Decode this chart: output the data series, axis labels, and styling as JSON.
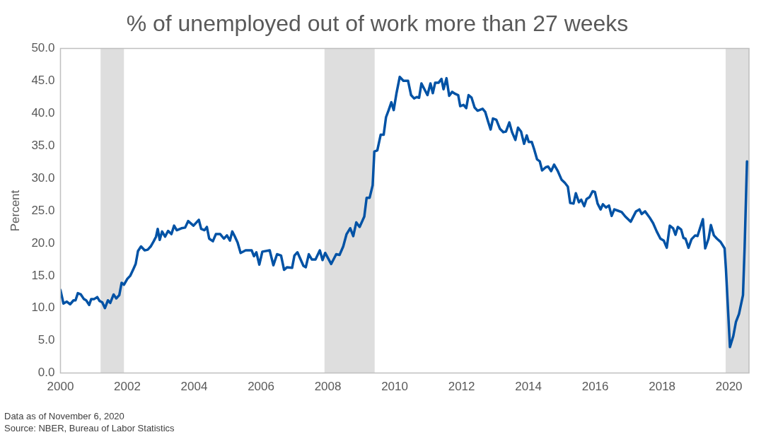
{
  "chart_data": {
    "type": "line",
    "title": "% of unemployed out of work more than 27 weeks",
    "ylabel": "Percent",
    "annotations": [
      "Data as of November 6, 2020",
      "Source: NBER, Bureau of Labor Statistics"
    ],
    "x": [
      2000.0,
      2000.09,
      2000.19,
      2000.29,
      2000.39,
      2000.45,
      2000.52,
      2000.61,
      2000.7,
      2000.77,
      2000.86,
      2000.92,
      2001.01,
      2001.1,
      2001.17,
      2001.25,
      2001.33,
      2001.42,
      2001.49,
      2001.59,
      2001.67,
      2001.76,
      2001.83,
      2001.9,
      2002.0,
      2002.09,
      2002.18,
      2002.25,
      2002.32,
      2002.41,
      2002.52,
      2002.61,
      2002.7,
      2002.79,
      2002.86,
      2002.91,
      2002.97,
      2003.04,
      2003.13,
      2003.22,
      2003.32,
      2003.4,
      2003.48,
      2003.62,
      2003.73,
      2003.82,
      2003.98,
      2004.14,
      2004.21,
      2004.31,
      2004.38,
      2004.45,
      2004.56,
      2004.65,
      2004.78,
      2004.89,
      2004.98,
      2005.07,
      2005.14,
      2005.21,
      2005.3,
      2005.39,
      2005.54,
      2005.72,
      2005.79,
      2005.86,
      2005.95,
      2006.04,
      2006.26,
      2006.37,
      2006.48,
      2006.6,
      2006.69,
      2006.78,
      2006.93,
      2007.0,
      2007.09,
      2007.27,
      2007.34,
      2007.43,
      2007.52,
      2007.63,
      2007.76,
      2007.84,
      2007.92,
      2008.1,
      2008.25,
      2008.35,
      2008.46,
      2008.56,
      2008.67,
      2008.76,
      2008.85,
      2008.95,
      2009.09,
      2009.16,
      2009.25,
      2009.34,
      2009.39,
      2009.48,
      2009.58,
      2009.67,
      2009.74,
      2009.82,
      2009.9,
      2009.97,
      2010.05,
      2010.15,
      2010.26,
      2010.4,
      2010.49,
      2010.58,
      2010.66,
      2010.73,
      2010.8,
      2010.89,
      2010.98,
      2011.07,
      2011.14,
      2011.21,
      2011.31,
      2011.4,
      2011.46,
      2011.55,
      2011.63,
      2011.72,
      2011.81,
      2011.9,
      2011.96,
      2012.06,
      2012.14,
      2012.21,
      2012.3,
      2012.39,
      2012.48,
      2012.63,
      2012.71,
      2012.79,
      2012.87,
      2012.94,
      2013.04,
      2013.15,
      2013.25,
      2013.33,
      2013.43,
      2013.51,
      2013.61,
      2013.69,
      2013.78,
      2013.87,
      2013.95,
      2014.01,
      2014.1,
      2014.17,
      2014.26,
      2014.34,
      2014.41,
      2014.52,
      2014.59,
      2014.68,
      2014.77,
      2014.88,
      2014.99,
      2015.09,
      2015.18,
      2015.25,
      2015.35,
      2015.42,
      2015.51,
      2015.58,
      2015.67,
      2015.74,
      2015.83,
      2015.92,
      2015.99,
      2016.07,
      2016.16,
      2016.23,
      2016.32,
      2016.41,
      2016.49,
      2016.57,
      2016.68,
      2016.79,
      2016.9,
      2017.06,
      2017.22,
      2017.32,
      2017.39,
      2017.49,
      2017.62,
      2017.73,
      2017.84,
      2017.95,
      2018.05,
      2018.14,
      2018.23,
      2018.33,
      2018.4,
      2018.47,
      2018.57,
      2018.64,
      2018.7,
      2018.79,
      2018.88,
      2018.99,
      2019.06,
      2019.22,
      2019.29,
      2019.39,
      2019.46,
      2019.55,
      2019.64,
      2019.75,
      2019.87,
      2019.91,
      2020.03,
      2020.13,
      2020.21,
      2020.3,
      2020.42,
      2020.47,
      2020.54
    ],
    "series": [
      {
        "color": "#0052a5",
        "values": [
          12.8,
          10.7,
          11.0,
          10.6,
          11.2,
          11.2,
          12.3,
          12.1,
          11.4,
          11.2,
          10.5,
          11.4,
          11.4,
          11.7,
          11.1,
          10.9,
          10.0,
          11.2,
          10.8,
          12.1,
          11.5,
          12.0,
          13.9,
          13.6,
          14.5,
          15.0,
          16.0,
          16.8,
          18.8,
          19.5,
          18.9,
          19.0,
          19.5,
          20.3,
          21.0,
          22.2,
          20.5,
          21.8,
          21.0,
          21.9,
          21.4,
          22.7,
          22.0,
          22.3,
          22.4,
          23.4,
          22.7,
          23.6,
          22.2,
          22.0,
          22.5,
          20.7,
          20.3,
          21.4,
          21.4,
          20.7,
          21.2,
          20.4,
          21.8,
          21.1,
          20.1,
          18.5,
          18.9,
          18.9,
          18.0,
          18.6,
          16.7,
          18.7,
          18.9,
          16.6,
          18.3,
          18.1,
          15.9,
          16.3,
          16.2,
          18.1,
          18.6,
          16.5,
          16.3,
          18.3,
          17.5,
          17.5,
          18.9,
          17.4,
          18.5,
          16.8,
          18.3,
          18.2,
          19.5,
          21.4,
          22.3,
          21.1,
          23.2,
          22.5,
          24.1,
          27.0,
          27.0,
          28.9,
          34.1,
          34.3,
          36.7,
          36.7,
          39.4,
          40.5,
          41.7,
          40.5,
          43.0,
          45.6,
          45.0,
          45.0,
          42.8,
          42.3,
          42.5,
          42.4,
          44.6,
          43.7,
          42.8,
          44.6,
          43.1,
          44.7,
          44.7,
          45.3,
          43.7,
          45.4,
          42.7,
          43.3,
          43.0,
          42.8,
          41.1,
          41.3,
          40.8,
          42.8,
          42.4,
          40.9,
          40.4,
          40.7,
          40.2,
          38.8,
          37.5,
          39.2,
          39.0,
          37.6,
          37.1,
          37.2,
          38.6,
          37.1,
          35.9,
          37.8,
          37.2,
          35.3,
          36.6,
          35.6,
          35.6,
          34.5,
          32.9,
          32.6,
          31.2,
          31.7,
          31.8,
          31.1,
          32.1,
          31.1,
          29.8,
          29.3,
          28.7,
          26.2,
          26.1,
          27.7,
          26.3,
          26.7,
          25.7,
          26.8,
          27.1,
          28.0,
          27.9,
          26.1,
          25.2,
          26.0,
          25.5,
          25.8,
          24.2,
          25.2,
          25.0,
          24.8,
          24.1,
          23.3,
          24.9,
          25.2,
          24.5,
          24.9,
          24.0,
          23.1,
          21.8,
          20.7,
          20.4,
          19.3,
          22.7,
          22.3,
          21.3,
          22.5,
          22.1,
          20.8,
          20.7,
          19.3,
          20.6,
          21.2,
          21.1,
          23.7,
          19.2,
          20.7,
          22.8,
          21.2,
          20.7,
          20.2,
          19.2,
          16.0,
          4.0,
          5.7,
          7.9,
          9.1,
          12.0,
          19.5,
          32.6
        ]
      }
    ],
    "xlim": [
      2000,
      2020.6
    ],
    "xticks": [
      2000,
      2002,
      2004,
      2006,
      2008,
      2010,
      2012,
      2014,
      2016,
      2018,
      2020
    ],
    "ylim": [
      0,
      50
    ],
    "yticks": [
      {
        "value": 0,
        "label": "0.0"
      },
      {
        "value": 5,
        "label": "5.0"
      },
      {
        "value": 10,
        "label": "10.0"
      },
      {
        "value": 15,
        "label": "15.0"
      },
      {
        "value": 20,
        "label": "20.0"
      },
      {
        "value": 25,
        "label": "25.0"
      },
      {
        "value": 30,
        "label": "30.0"
      },
      {
        "value": 35,
        "label": "35.0"
      },
      {
        "value": 40,
        "label": "40.0"
      },
      {
        "value": 45,
        "label": "45.0"
      },
      {
        "value": 50,
        "label": "50.0"
      }
    ],
    "bands": [
      {
        "axis": "x",
        "from": 2001.2,
        "to": 2001.9,
        "color": "#dedede"
      },
      {
        "axis": "x",
        "from": 2007.9,
        "to": 2009.4,
        "color": "#dedede"
      },
      {
        "axis": "x",
        "from": 2019.9,
        "to": 2020.6,
        "color": "#dedede"
      }
    ],
    "grid": false,
    "legend": false,
    "marker": "none",
    "line_style": "solid"
  }
}
